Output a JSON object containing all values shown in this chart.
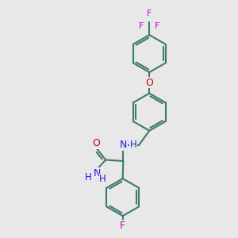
{
  "background_color": "#e8e8e8",
  "bond_color": "#3d7a6b",
  "bond_width": 1.5,
  "atom_colors": {
    "O": "#cc0000",
    "N": "#1a1aee",
    "F_fluoro": "#cc00cc",
    "F_trifluoro": "#cc00cc"
  },
  "figsize": [
    3.0,
    3.0
  ],
  "dpi": 100,
  "xlim": [
    0,
    10
  ],
  "ylim": [
    0,
    10
  ]
}
